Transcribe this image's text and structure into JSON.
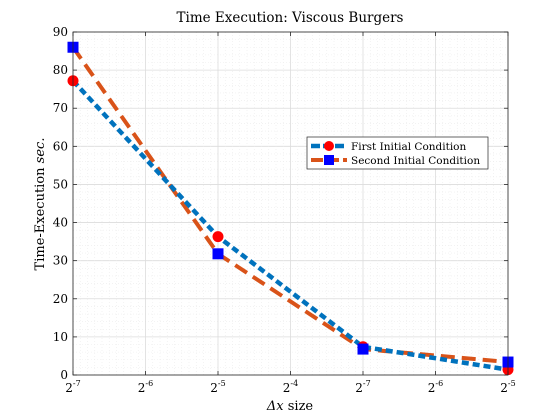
{
  "chart_data": {
    "type": "line",
    "title": "Time Execution: Viscous Burgers",
    "xlabel_symbol": "Δx",
    "xlabel_rest": " size",
    "ylabel_main": "Time-Execution ",
    "ylabel_unit": "sec.",
    "x_ticks": [
      {
        "base": "2",
        "exp": "-7"
      },
      {
        "base": "2",
        "exp": "-6"
      },
      {
        "base": "2",
        "exp": "-5"
      },
      {
        "base": "2",
        "exp": "-4"
      },
      {
        "base": "2",
        "exp": "-7"
      },
      {
        "base": "2",
        "exp": "-6"
      },
      {
        "base": "2",
        "exp": "-5"
      }
    ],
    "y_ticks": [
      "0",
      "10",
      "20",
      "30",
      "40",
      "50",
      "60",
      "70",
      "80",
      "90"
    ],
    "ylim": [
      0,
      90
    ],
    "grid": true,
    "legend_position": "right",
    "series": [
      {
        "name": "First Initial Condition",
        "color": "#0072BD",
        "marker": "circle",
        "marker_color": "#ff0000",
        "points": [
          {
            "tick_index": 0,
            "y": 77.2
          },
          {
            "tick_index": 2,
            "y": 36.3
          },
          {
            "tick_index": 4,
            "y": 7.4
          },
          {
            "tick_index": 6,
            "y": 1.4
          }
        ]
      },
      {
        "name": "Second Initial Condition",
        "color": "#D95319",
        "marker": "square",
        "marker_color": "#0000ff",
        "points": [
          {
            "tick_index": 0,
            "y": 86.0
          },
          {
            "tick_index": 2,
            "y": 31.8
          },
          {
            "tick_index": 4,
            "y": 6.8
          },
          {
            "tick_index": 6,
            "y": 3.4
          }
        ]
      }
    ]
  }
}
